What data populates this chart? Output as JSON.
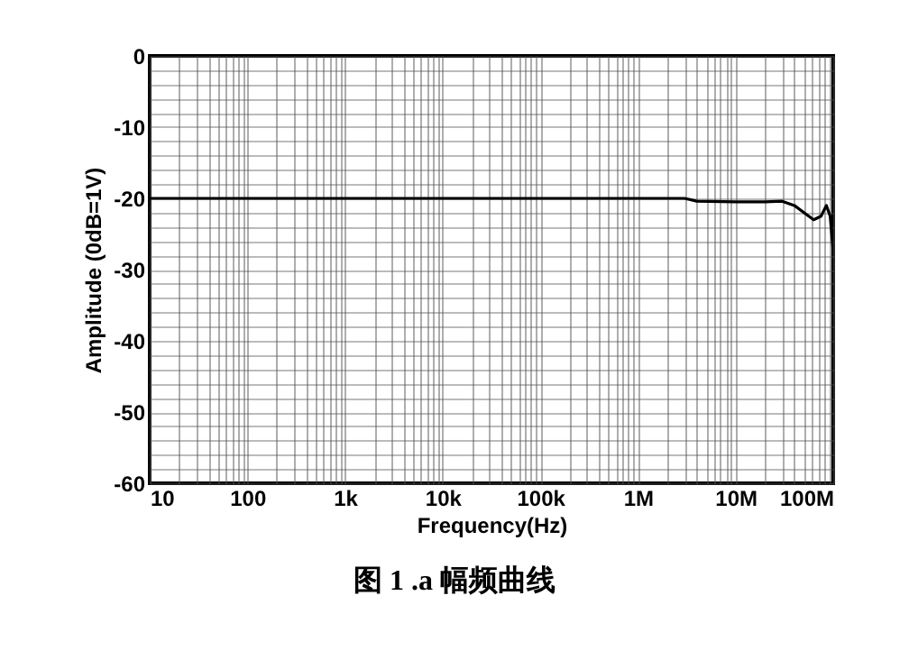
{
  "chart_data": {
    "type": "line",
    "xlabel": "Frequency(Hz)",
    "ylabel": "Amplitude (0dB=1V)",
    "annotations": [
      "图 1 .a 幅频曲线"
    ],
    "log": "x",
    "grid": true,
    "marker": "none",
    "line_style": "solid",
    "x": [
      10,
      1000000,
      3000000,
      4000000,
      10000000,
      20000000,
      30000000,
      40000000,
      50000000,
      63000000,
      75000000,
      85000000,
      93000000,
      100000000
    ],
    "series": [
      {
        "color": "#000000",
        "values": [
          -20,
          -20,
          -20,
          -20.4,
          -20.5,
          -20.5,
          -20.4,
          -21,
          -22,
          -23,
          -22.5,
          -21,
          -22.5,
          -27.5
        ]
      }
    ],
    "xlim": [
      10,
      100000000
    ],
    "xticks": [
      {
        "value": 10,
        "label": "10"
      },
      {
        "value": 20,
        "label": null
      },
      {
        "value": 30,
        "label": null
      },
      {
        "value": 40,
        "label": null
      },
      {
        "value": 50,
        "label": null
      },
      {
        "value": 60,
        "label": null
      },
      {
        "value": 70,
        "label": null
      },
      {
        "value": 80,
        "label": null
      },
      {
        "value": 90,
        "label": null
      },
      {
        "value": 100,
        "label": "100"
      },
      {
        "value": 200,
        "label": null
      },
      {
        "value": 300,
        "label": null
      },
      {
        "value": 400,
        "label": null
      },
      {
        "value": 500,
        "label": null
      },
      {
        "value": 600,
        "label": null
      },
      {
        "value": 700,
        "label": null
      },
      {
        "value": 800,
        "label": null
      },
      {
        "value": 900,
        "label": null
      },
      {
        "value": 1000,
        "label": "1k"
      },
      {
        "value": 2000,
        "label": null
      },
      {
        "value": 3000,
        "label": null
      },
      {
        "value": 4000,
        "label": null
      },
      {
        "value": 5000,
        "label": null
      },
      {
        "value": 6000,
        "label": null
      },
      {
        "value": 7000,
        "label": null
      },
      {
        "value": 8000,
        "label": null
      },
      {
        "value": 9000,
        "label": null
      },
      {
        "value": 10000,
        "label": "10k"
      },
      {
        "value": 20000,
        "label": null
      },
      {
        "value": 30000,
        "label": null
      },
      {
        "value": 40000,
        "label": null
      },
      {
        "value": 50000,
        "label": null
      },
      {
        "value": 60000,
        "label": null
      },
      {
        "value": 70000,
        "label": null
      },
      {
        "value": 80000,
        "label": null
      },
      {
        "value": 90000,
        "label": null
      },
      {
        "value": 100000,
        "label": "100k"
      },
      {
        "value": 200000,
        "label": null
      },
      {
        "value": 300000,
        "label": null
      },
      {
        "value": 400000,
        "label": null
      },
      {
        "value": 500000,
        "label": null
      },
      {
        "value": 600000,
        "label": null
      },
      {
        "value": 700000,
        "label": null
      },
      {
        "value": 800000,
        "label": null
      },
      {
        "value": 900000,
        "label": null
      },
      {
        "value": 1000000,
        "label": "1M"
      },
      {
        "value": 2000000,
        "label": null
      },
      {
        "value": 3000000,
        "label": null
      },
      {
        "value": 4000000,
        "label": null
      },
      {
        "value": 5000000,
        "label": null
      },
      {
        "value": 6000000,
        "label": null
      },
      {
        "value": 7000000,
        "label": null
      },
      {
        "value": 8000000,
        "label": null
      },
      {
        "value": 9000000,
        "label": null
      },
      {
        "value": 10000000,
        "label": "10M"
      },
      {
        "value": 20000000,
        "label": null
      },
      {
        "value": 30000000,
        "label": null
      },
      {
        "value": 40000000,
        "label": null
      },
      {
        "value": 50000000,
        "label": null
      },
      {
        "value": 60000000,
        "label": null
      },
      {
        "value": 70000000,
        "label": null
      },
      {
        "value": 80000000,
        "label": null
      },
      {
        "value": 90000000,
        "label": null
      },
      {
        "value": 100000000,
        "label": "100M"
      }
    ],
    "ylim": [
      -60,
      0
    ],
    "yticks": [
      -60,
      {
        "value": -58,
        "label": null
      },
      {
        "value": -56,
        "label": null
      },
      {
        "value": -54,
        "label": null
      },
      {
        "value": -52,
        "label": null
      },
      -50,
      {
        "value": -48,
        "label": null
      },
      {
        "value": -46,
        "label": null
      },
      {
        "value": -44,
        "label": null
      },
      {
        "value": -42,
        "label": null
      },
      -40,
      {
        "value": -38,
        "label": null
      },
      {
        "value": -36,
        "label": null
      },
      {
        "value": -34,
        "label": null
      },
      {
        "value": -32,
        "label": null
      },
      -30,
      {
        "value": -28,
        "label": null
      },
      {
        "value": -26,
        "label": null
      },
      {
        "value": -24,
        "label": null
      },
      {
        "value": -22,
        "label": null
      },
      -20,
      {
        "value": -18,
        "label": null
      },
      {
        "value": -16,
        "label": null
      },
      {
        "value": -14,
        "label": null
      },
      {
        "value": -12,
        "label": null
      },
      -10,
      {
        "value": -8,
        "label": null
      },
      {
        "value": -6,
        "label": null
      },
      {
        "value": -4,
        "label": null
      },
      {
        "value": -2,
        "label": null
      },
      0
    ]
  }
}
